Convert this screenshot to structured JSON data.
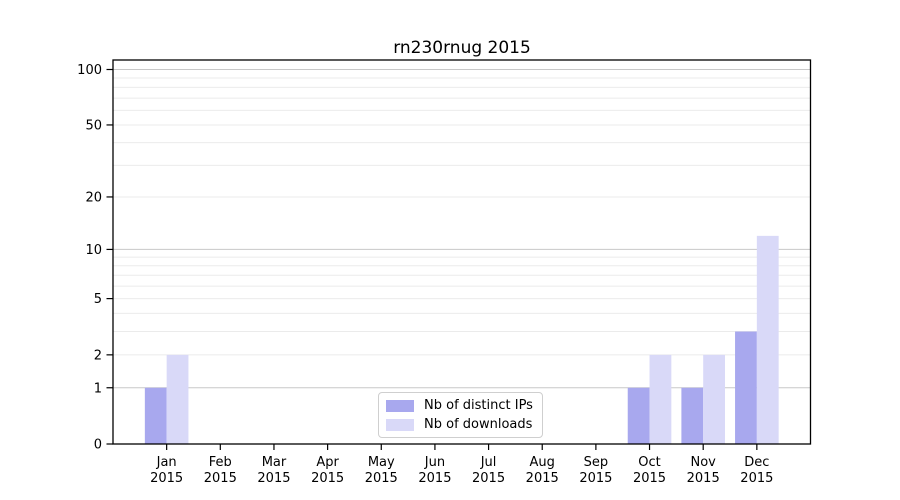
{
  "chart_data": {
    "type": "bar",
    "title": "rn230rnug 2015",
    "categories": [
      "Jan",
      "Feb",
      "Mar",
      "Apr",
      "May",
      "Jun",
      "Jul",
      "Aug",
      "Sep",
      "Oct",
      "Nov",
      "Dec"
    ],
    "category_year": "2015",
    "series": [
      {
        "name": "Nb of distinct IPs",
        "color": "#a8a8ee",
        "values": [
          1,
          0,
          0,
          0,
          0,
          0,
          0,
          0,
          0,
          1,
          1,
          3
        ]
      },
      {
        "name": "Nb of downloads",
        "color": "#d9d9f8",
        "values": [
          2,
          0,
          0,
          0,
          0,
          0,
          0,
          0,
          0,
          2,
          2,
          12
        ]
      }
    ],
    "yscale": "log1p",
    "ylim": [
      0,
      113
    ],
    "yticks": [
      0,
      1,
      2,
      5,
      10,
      20,
      50,
      100
    ],
    "major_gridlines": [
      1,
      10,
      100
    ],
    "minor_gridlines": [
      2,
      3,
      4,
      5,
      6,
      7,
      8,
      9,
      20,
      30,
      40,
      50,
      60,
      70,
      80,
      90
    ],
    "grid": "on",
    "legend_position": "lower center inside plot"
  },
  "colors": {
    "background": "#ffffff",
    "spine": "#000000",
    "major_grid": "#c8c8c8",
    "minor_grid": "#ebebeb",
    "tick_text": "#000000",
    "legend_border": "#cfcfcf"
  }
}
